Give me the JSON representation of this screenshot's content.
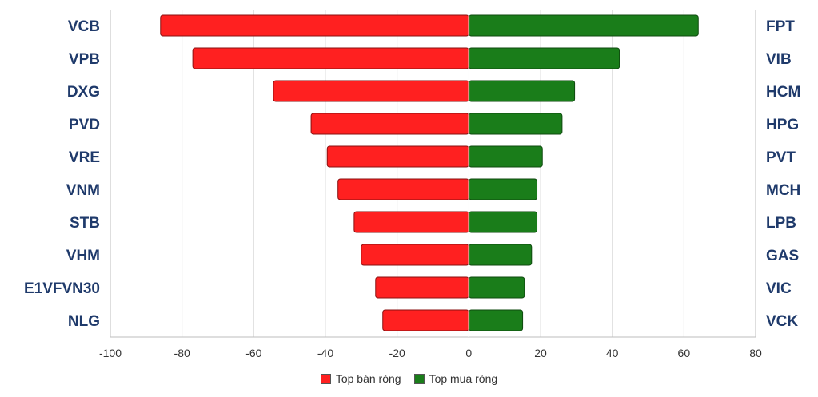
{
  "chart_data": {
    "type": "bar",
    "orientation": "horizontal",
    "xlim": [
      -100,
      80
    ],
    "x_ticks": [
      "-100",
      "-80",
      "-60",
      "-40",
      "-20",
      "0",
      "20",
      "40",
      "60",
      "80"
    ],
    "grid": true,
    "legend_position": "bottom-center",
    "series": [
      {
        "name": "Top bán ròng",
        "color": "#ff2020",
        "categories": [
          "VCB",
          "VPB",
          "DXG",
          "PVD",
          "VRE",
          "VNM",
          "STB",
          "VHM",
          "E1VFVN30",
          "NLG"
        ],
        "values": [
          -86,
          -77,
          -54.5,
          -44,
          -39.5,
          -36.5,
          -32,
          -30,
          -26,
          -24
        ]
      },
      {
        "name": "Top mua ròng",
        "color": "#1a7d1a",
        "categories": [
          "FPT",
          "VIB",
          "HCM",
          "HPG",
          "PVT",
          "MCH",
          "LPB",
          "GAS",
          "VIC",
          "VCK"
        ],
        "values": [
          64,
          42,
          29.5,
          26,
          20.5,
          19,
          19,
          17.5,
          15.5,
          15
        ]
      }
    ]
  }
}
